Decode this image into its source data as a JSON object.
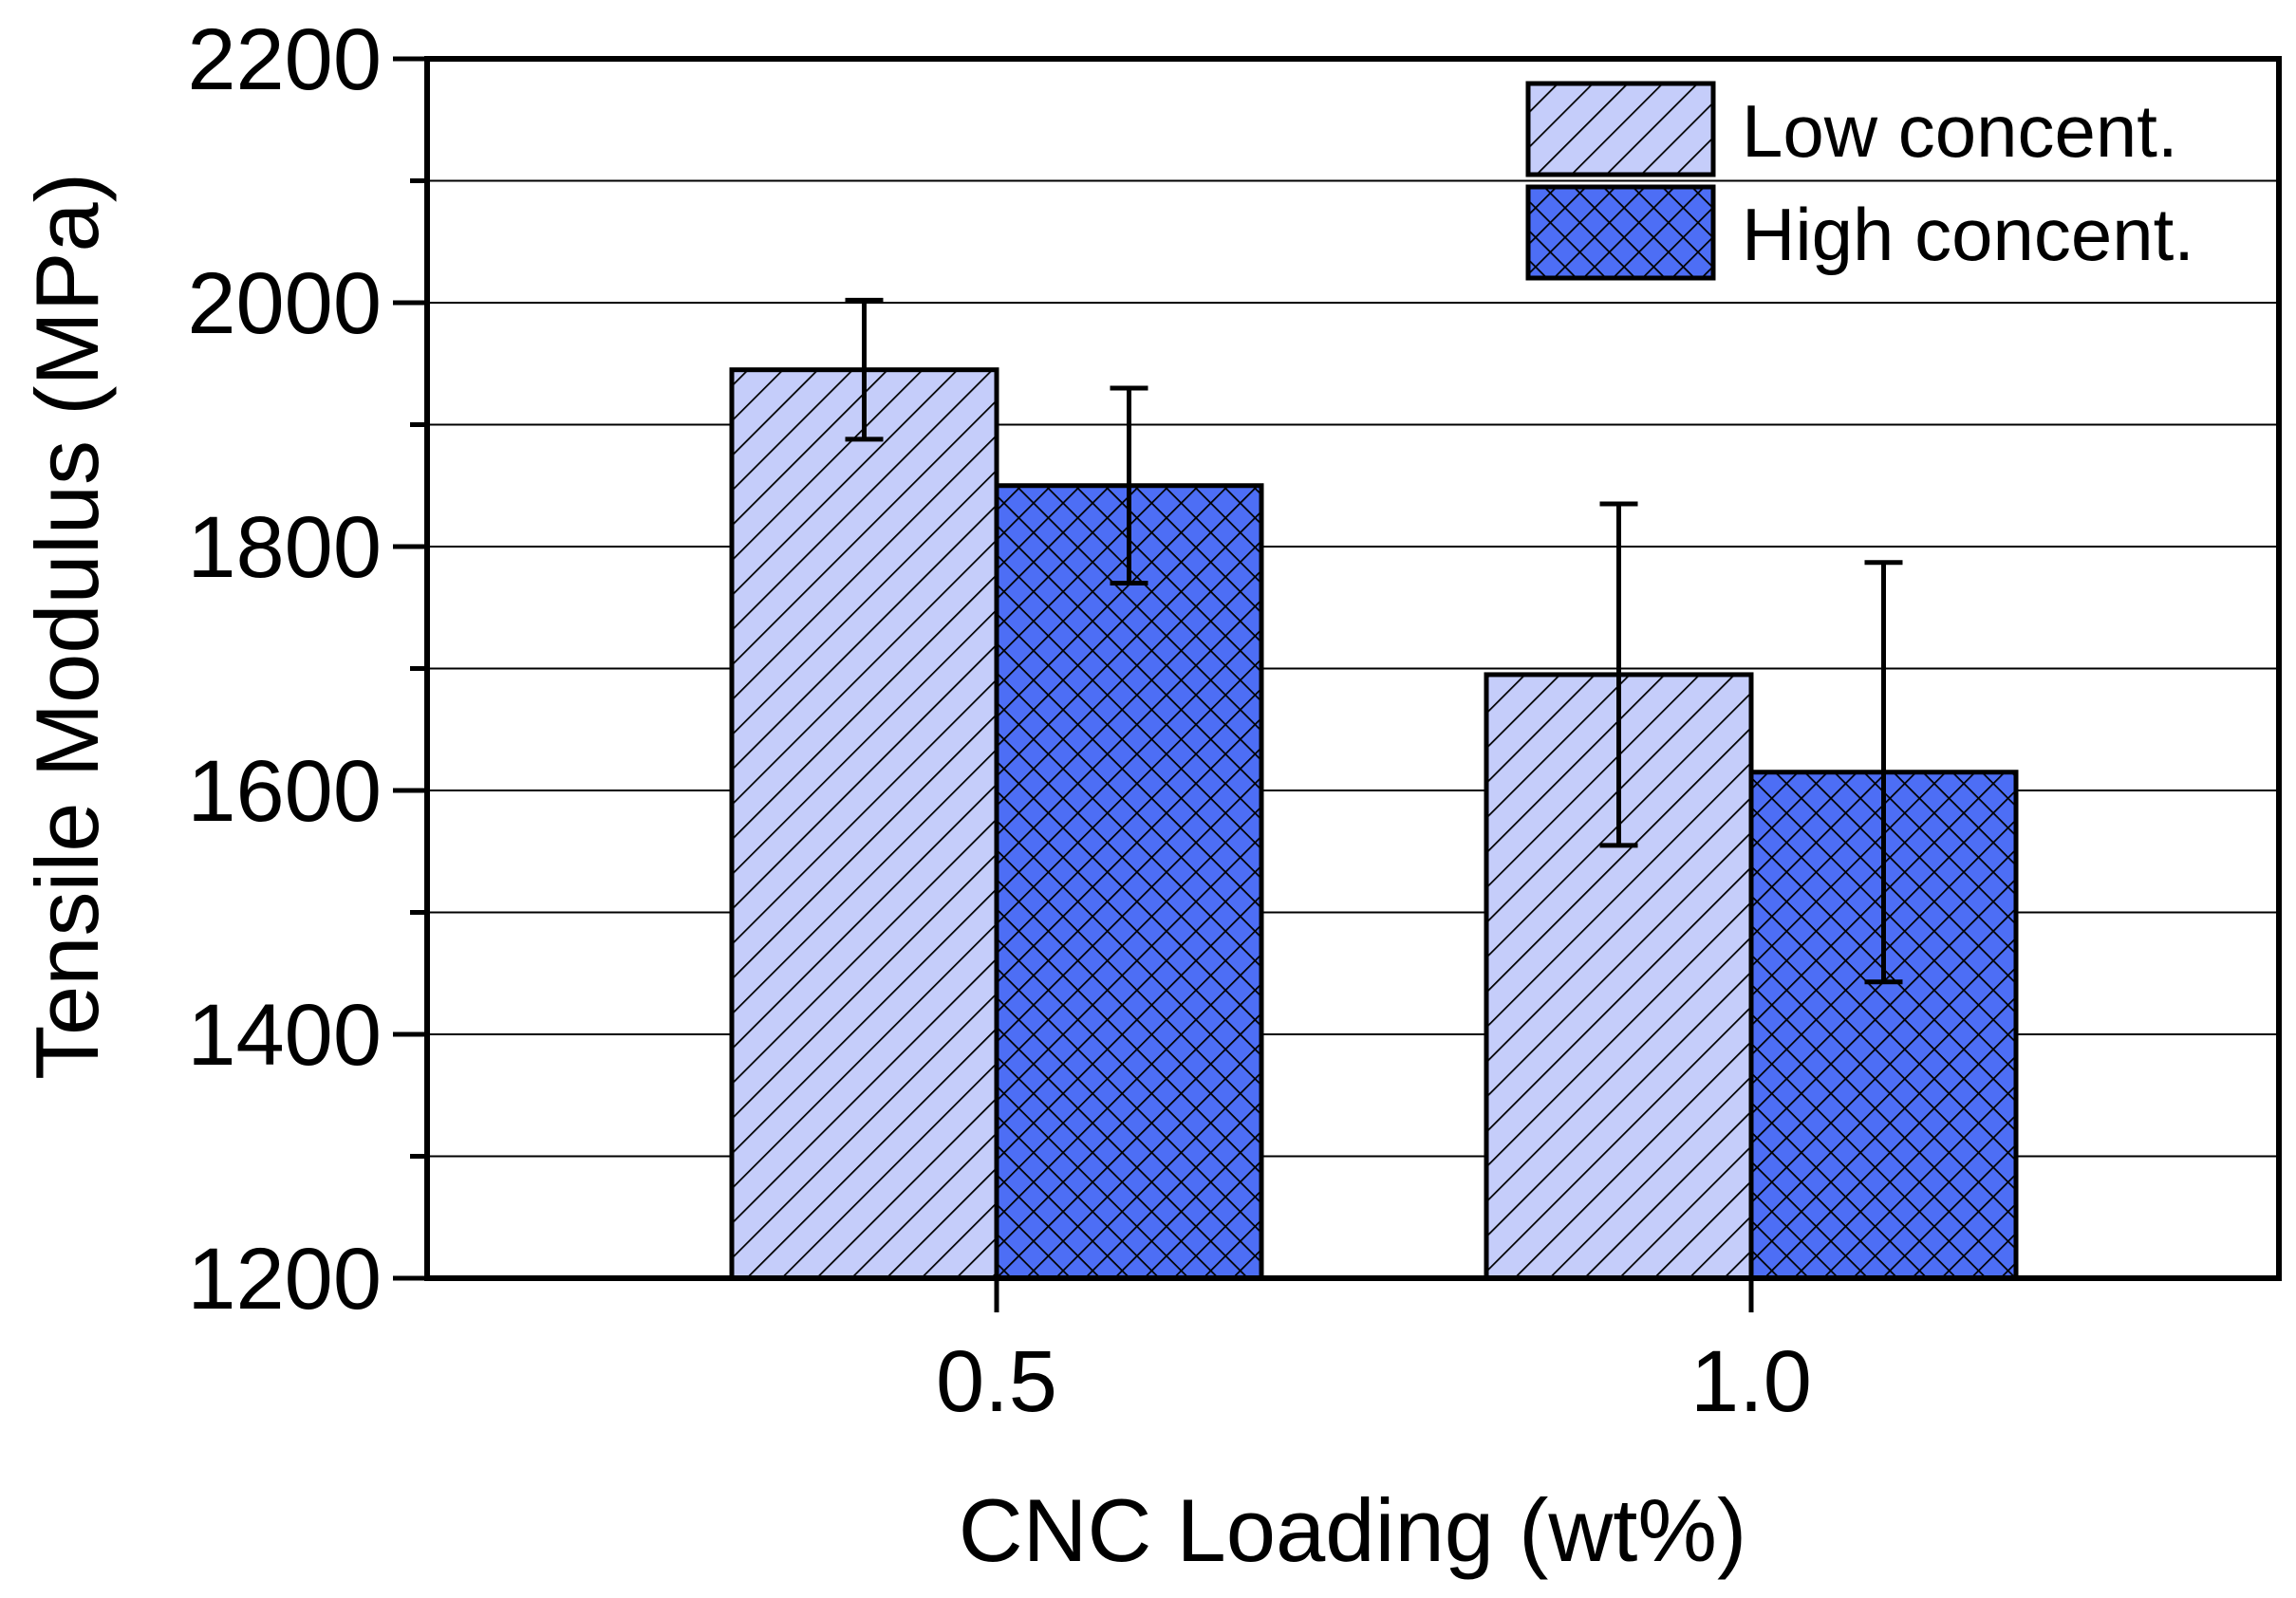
{
  "chart_data": {
    "type": "bar",
    "title": "",
    "xlabel": "CNC Loading (wt%)",
    "ylabel": "Tensile Modulus (MPa)",
    "categories": [
      "0.5",
      "1.0"
    ],
    "ylim": [
      1200,
      2200
    ],
    "yticks": [
      1200,
      1400,
      1600,
      1800,
      2000,
      2200
    ],
    "yminor_step": 100,
    "grid": true,
    "legend_position": "top-right",
    "series": [
      {
        "name": "Low concent.",
        "values": [
          1945,
          1695
        ],
        "errors": [
          57,
          140
        ],
        "color": "#c5cdfa",
        "pattern": "diagonal-hatch"
      },
      {
        "name": "High concent.",
        "values": [
          1850,
          1615
        ],
        "errors": [
          80,
          172
        ],
        "color": "#4d6ef5",
        "pattern": "cross-hatch"
      }
    ]
  }
}
